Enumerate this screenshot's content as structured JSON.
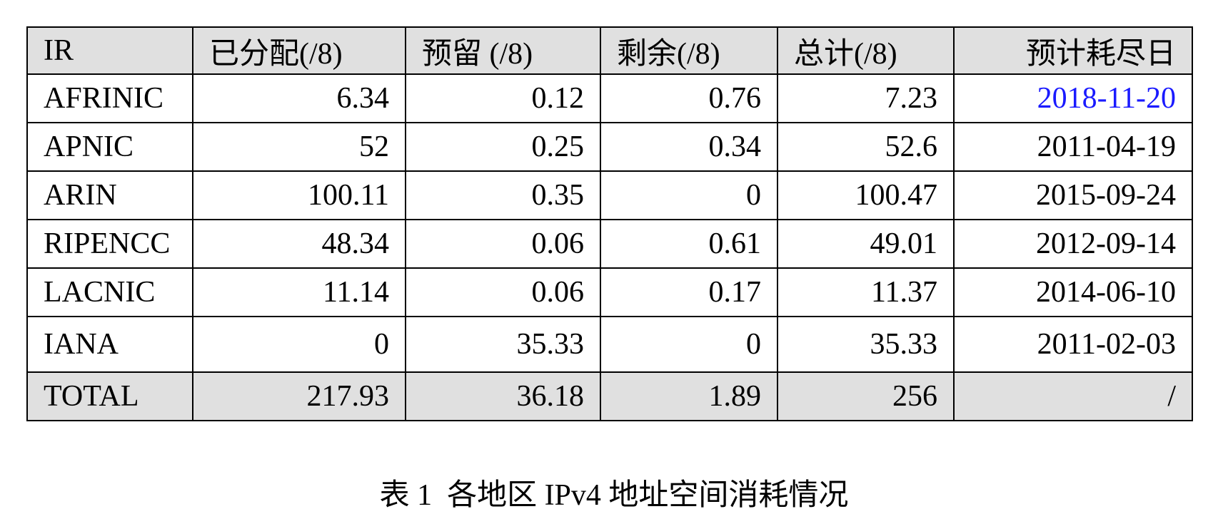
{
  "table": {
    "header": [
      "IR",
      "已分配(/8)",
      "预留 (/8)",
      "剩余(/8)",
      "总计(/8)",
      "预计耗尽日"
    ],
    "rows": [
      [
        "AFRINIC",
        "6.34",
        "0.12",
        "0.76",
        "7.23",
        "2018-11-20"
      ],
      [
        "APNIC",
        "52",
        "0.25",
        "0.34",
        "52.6",
        "2011-04-19"
      ],
      [
        "ARIN",
        "100.11",
        "0.35",
        "0",
        "100.47",
        "2015-09-24"
      ],
      [
        "RIPENCC",
        "48.34",
        "0.06",
        "0.61",
        "49.01",
        "2012-09-14"
      ],
      [
        "LACNIC",
        "11.14",
        "0.06",
        "0.17",
        "11.37",
        "2014-06-10"
      ],
      [
        "IANA",
        "0",
        "35.33",
        "0",
        "35.33",
        "2011-02-03"
      ],
      [
        "TOTAL",
        "217.93",
        "36.18",
        "1.89",
        "256",
        "/"
      ]
    ]
  },
  "caption": "表 1  各地区 IPv4 地址空间消耗情况"
}
